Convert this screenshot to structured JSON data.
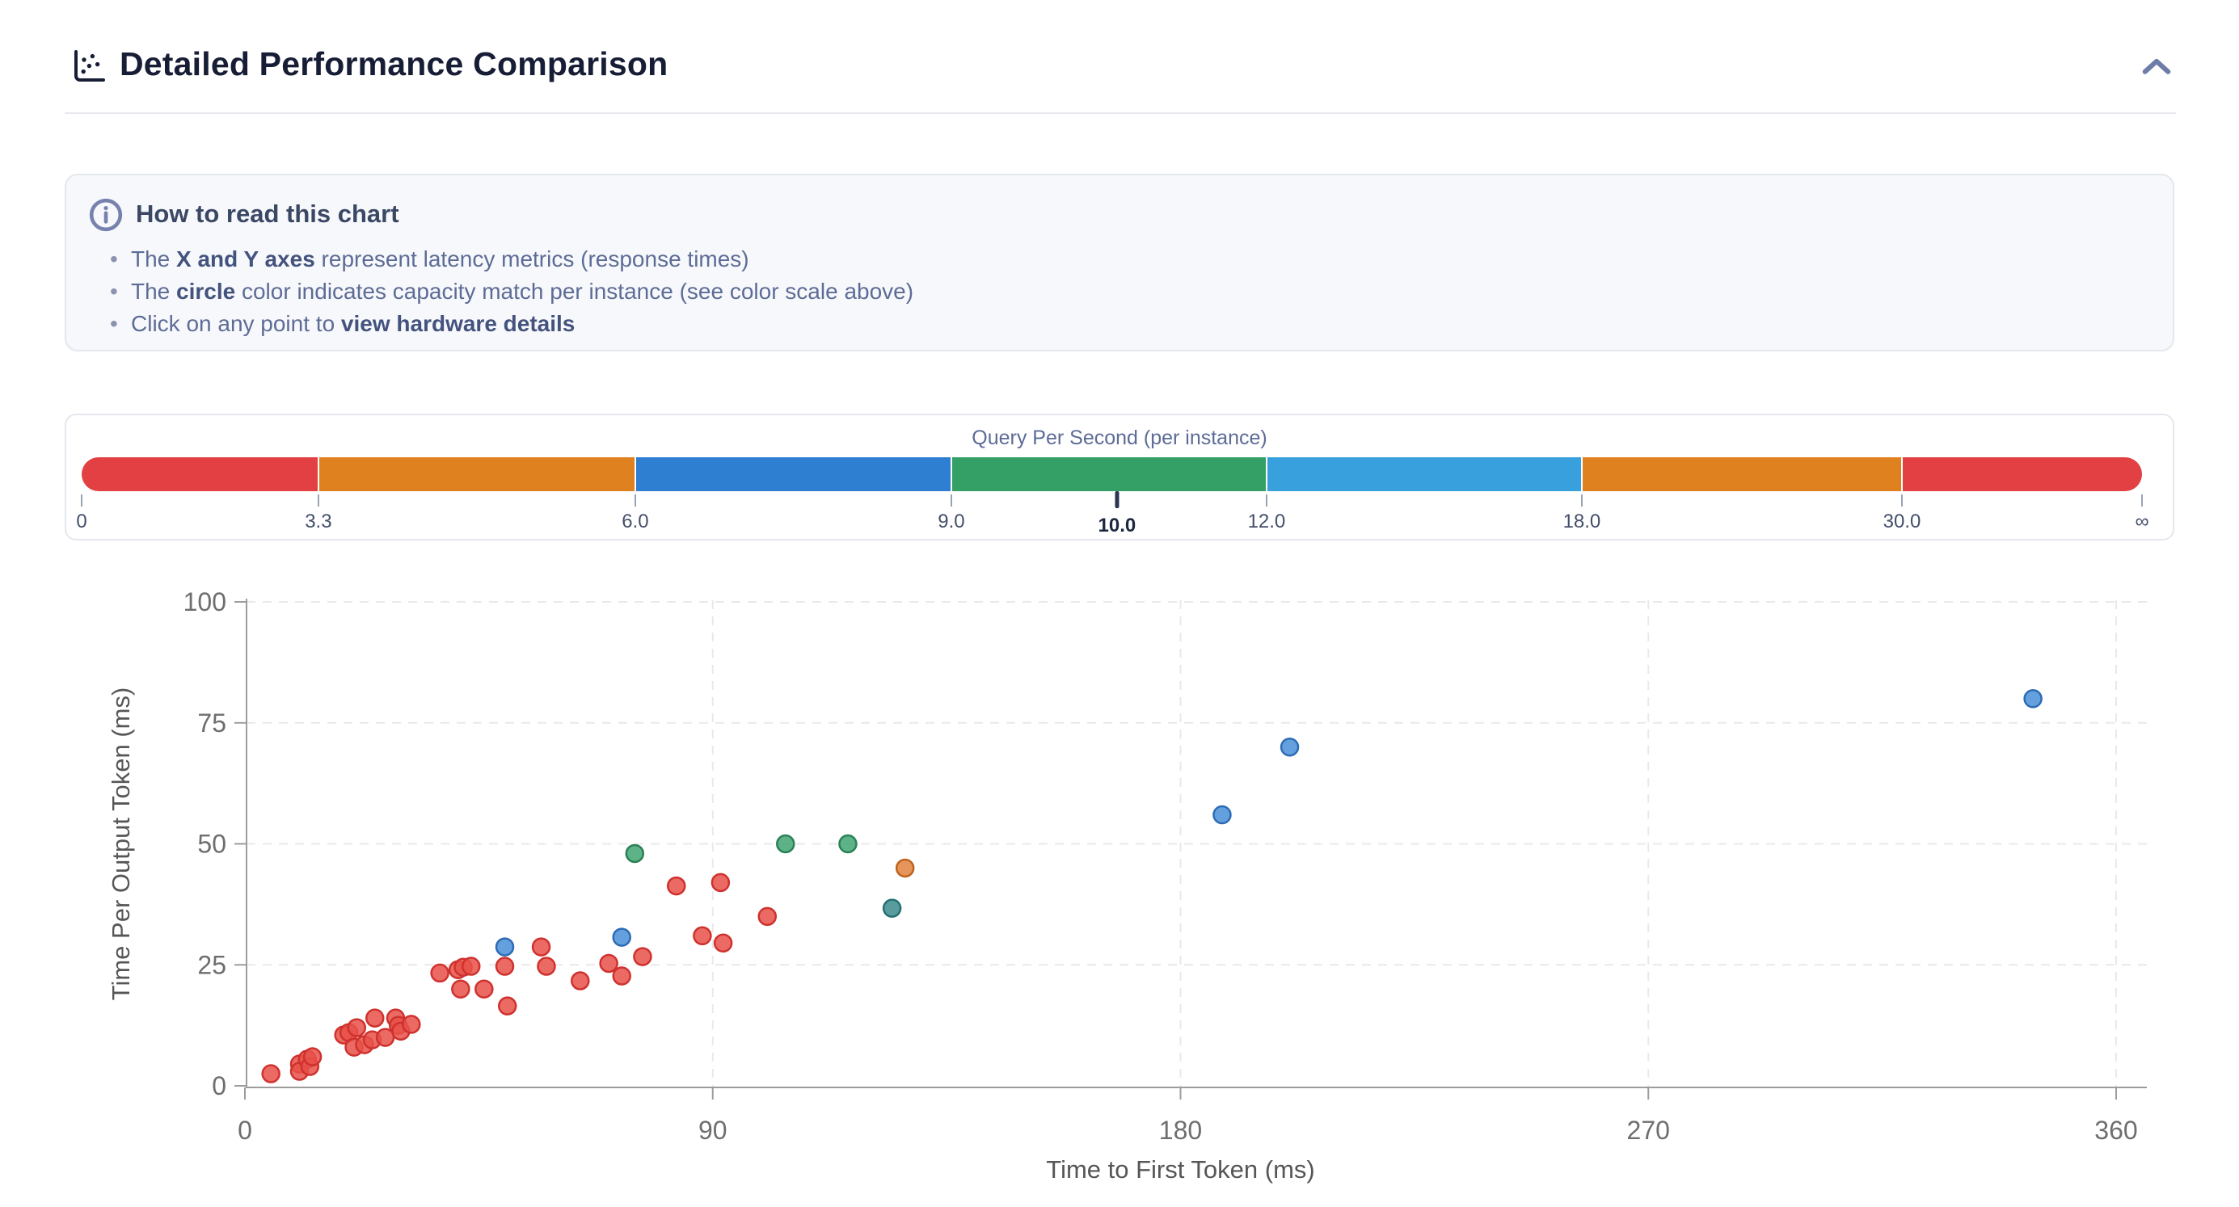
{
  "header": {
    "title": "Detailed Performance Comparison"
  },
  "info_box": {
    "title": "How to read this chart",
    "bullets": [
      [
        {
          "t": "The ",
          "b": false
        },
        {
          "t": "X and Y axes",
          "b": true
        },
        {
          "t": " represent latency metrics (response times)",
          "b": false
        }
      ],
      [
        {
          "t": "The ",
          "b": false
        },
        {
          "t": "circle",
          "b": true
        },
        {
          "t": " color indicates capacity match per instance (see color scale above)",
          "b": false
        }
      ],
      [
        {
          "t": "Click on any point to ",
          "b": false
        },
        {
          "t": "view hardware details",
          "b": true
        }
      ]
    ]
  },
  "color_scale": {
    "title": "Query Per Second (per instance)",
    "segments": [
      {
        "name": "0-3.3",
        "color": "#e24043",
        "flex": 11.49
      },
      {
        "name": "3.3-6.0",
        "color": "#e0811f",
        "flex": 15.38
      },
      {
        "name": "6.0-9.0",
        "color": "#2e7fd2",
        "flex": 15.34
      },
      {
        "name": "9.0-12.0",
        "color": "#34a065",
        "flex": 15.3
      },
      {
        "name": "12.0-18.0",
        "color": "#38a0dc",
        "flex": 15.3
      },
      {
        "name": "18.0-30.0",
        "color": "#e0811f",
        "flex": 15.54
      },
      {
        "name": "30.0-inf",
        "color": "#e24043",
        "flex": 11.65
      }
    ],
    "labels": [
      {
        "text": "0",
        "pos": 0
      },
      {
        "text": "3.3",
        "pos": 11.49
      },
      {
        "text": "6.0",
        "pos": 26.87
      },
      {
        "text": "9.0",
        "pos": 42.21
      },
      {
        "text": "12.0",
        "pos": 57.51
      },
      {
        "text": "18.0",
        "pos": 72.81
      },
      {
        "text": "30.0",
        "pos": 88.35
      },
      {
        "text": "∞",
        "pos": 100
      }
    ],
    "marker": {
      "text": "10.0",
      "pos": 50.25
    }
  },
  "chart_data": {
    "type": "scatter",
    "xlabel": "Time to First Token (ms)",
    "ylabel": "Time Per Output Token (ms)",
    "xlim": [
      0,
      360
    ],
    "ylim": [
      0,
      100
    ],
    "x_ticks": [
      0,
      90,
      180,
      270,
      360
    ],
    "y_ticks": [
      0,
      25,
      50,
      75,
      100
    ],
    "grid": "dashed",
    "series": [
      {
        "name": "red",
        "color": "#e85149",
        "edge": "#cf312e",
        "points": [
          [
            5,
            2.5
          ],
          [
            10.5,
            4.5
          ],
          [
            10.5,
            3
          ],
          [
            12,
            5.5
          ],
          [
            12.5,
            4
          ],
          [
            13,
            6
          ],
          [
            19,
            10.5
          ],
          [
            20,
            11
          ],
          [
            21,
            8
          ],
          [
            21.5,
            12
          ],
          [
            23,
            8.5
          ],
          [
            24.5,
            9.5
          ],
          [
            25,
            14
          ],
          [
            27,
            10
          ],
          [
            29,
            14
          ],
          [
            29.5,
            12.5
          ],
          [
            30,
            11.3
          ],
          [
            32,
            12.7
          ],
          [
            37.5,
            23.3
          ],
          [
            41,
            24
          ],
          [
            41.5,
            20
          ],
          [
            42,
            24.5
          ],
          [
            43.5,
            24.7
          ],
          [
            46,
            20
          ],
          [
            50,
            24.7
          ],
          [
            50.5,
            16.5
          ],
          [
            57,
            28.7
          ],
          [
            58,
            24.7
          ],
          [
            64.5,
            21.7
          ],
          [
            70,
            25.3
          ],
          [
            72.5,
            22.7
          ],
          [
            76.5,
            26.7
          ],
          [
            83,
            41.3
          ],
          [
            88,
            31
          ],
          [
            91.5,
            42
          ],
          [
            92,
            29.5
          ],
          [
            100.5,
            35
          ]
        ]
      },
      {
        "name": "blue",
        "color": "#4a8fd8",
        "edge": "#2d6cb5",
        "points": [
          [
            50,
            28.7
          ],
          [
            72.5,
            30.7
          ],
          [
            188,
            56
          ],
          [
            201,
            70
          ],
          [
            344,
            80
          ]
        ]
      },
      {
        "name": "green",
        "color": "#41a473",
        "edge": "#2b8156",
        "points": [
          [
            75,
            48
          ],
          [
            104,
            50
          ],
          [
            116,
            50
          ]
        ]
      },
      {
        "name": "orange",
        "color": "#e0833d",
        "edge": "#bf621c",
        "points": [
          [
            127,
            45
          ]
        ]
      },
      {
        "name": "teal",
        "color": "#3b8b8d",
        "edge": "#266f71",
        "points": [
          [
            124.5,
            36.7
          ]
        ]
      }
    ]
  }
}
